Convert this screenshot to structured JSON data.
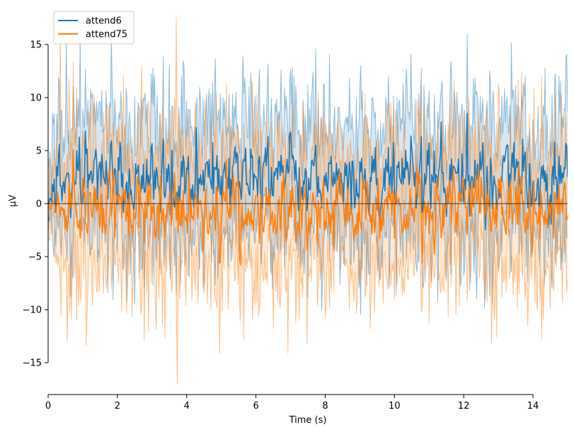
{
  "chart_data": {
    "type": "line",
    "title": "",
    "xlabel": "Time (s)",
    "ylabel": "µV",
    "xlim": [
      0,
      15
    ],
    "ylim": [
      -18,
      18
    ],
    "x_ticks": [
      0,
      2,
      4,
      6,
      8,
      10,
      12,
      14
    ],
    "y_ticks": [
      -15,
      -10,
      -5,
      0,
      5,
      10,
      15
    ],
    "zero_line": true,
    "grid": false,
    "legend_position": "top-left",
    "x_step": 0.025,
    "series": [
      {
        "name": "attend6",
        "color": "#1f77b4",
        "mean_level": 2.5,
        "band_range": [
          -10.5,
          16.0
        ]
      },
      {
        "name": "attend75",
        "color": "#ff7f0e",
        "mean_level": -0.5,
        "band_range": [
          -17.0,
          17.6
        ]
      }
    ],
    "annotations": []
  }
}
